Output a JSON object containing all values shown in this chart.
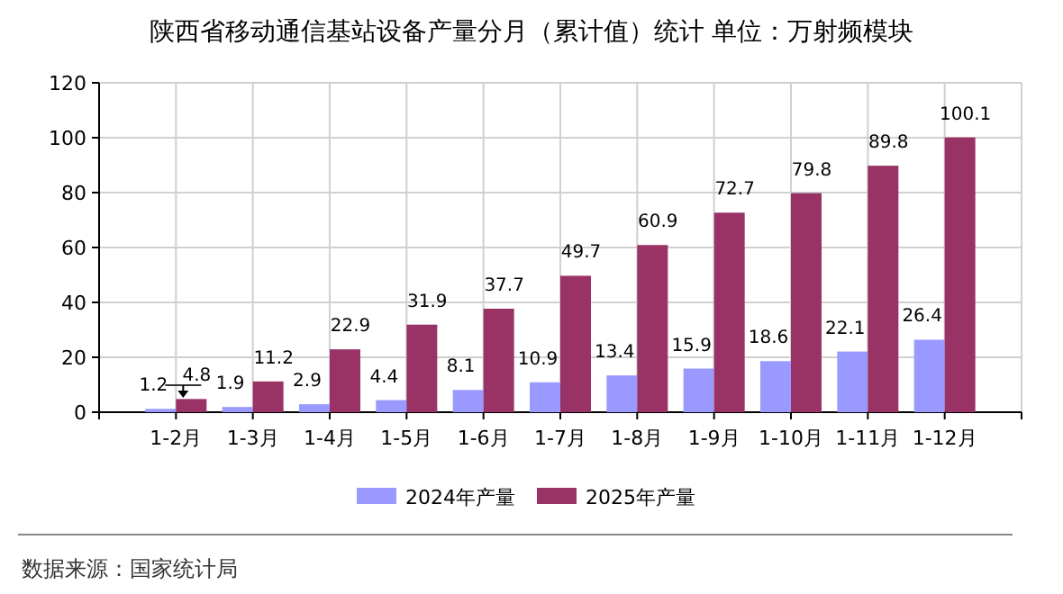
{
  "chart_data": {
    "type": "bar",
    "title": "陕西省移动通信基站设备产量分月（累计值）统计  单位：万射频模块",
    "categories": [
      "1-2月",
      "1-3月",
      "1-4月",
      "1-5月",
      "1-6月",
      "1-7月",
      "1-8月",
      "1-9月",
      "1-10月",
      "1-11月",
      "1-12月"
    ],
    "series": [
      {
        "name": "2024年产量",
        "color": "#9999ff",
        "values": [
          1.2,
          1.9,
          2.9,
          4.4,
          8.1,
          10.9,
          13.4,
          15.9,
          18.6,
          22.1,
          26.4
        ]
      },
      {
        "name": "2025年产量",
        "color": "#993366",
        "values": [
          4.8,
          11.2,
          22.9,
          31.9,
          37.7,
          49.7,
          60.9,
          72.7,
          79.8,
          89.8,
          100.1
        ]
      }
    ],
    "ylim": [
      0,
      120
    ],
    "yticks": [
      0,
      20,
      40,
      60,
      80,
      100,
      120
    ],
    "grid": true,
    "legend": "bottom",
    "data_labels": true,
    "annotations": [
      "数据来源：国家统计局"
    ]
  }
}
